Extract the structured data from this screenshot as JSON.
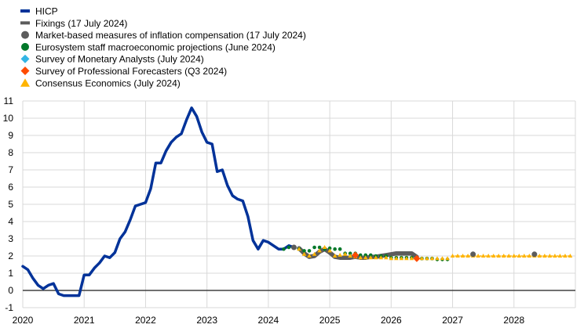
{
  "chart_data": {
    "type": "line",
    "title": "",
    "xlabel": "",
    "ylabel": "",
    "xlim": [
      2020,
      2029
    ],
    "ylim": [
      -1,
      11
    ],
    "grid": true,
    "legend_placement": "top-left",
    "x_ticks": [
      "2020",
      "2021",
      "2022",
      "2023",
      "2024",
      "2025",
      "2026",
      "2027",
      "2028"
    ],
    "y_ticks": [
      "-1",
      "0",
      "1",
      "2",
      "3",
      "4",
      "5",
      "6",
      "7",
      "8",
      "9",
      "10",
      "11"
    ],
    "colors": {
      "hicp": "#003299",
      "fixings": "#5c5c5c",
      "market": "#5c5c5c",
      "eurosystem": "#00782a",
      "sma": "#33b5e5",
      "spf": "#ff4b00",
      "consensus": "#ffb400",
      "grid": "#d9d9d9",
      "zero_line": "#404040"
    },
    "legend": [
      {
        "key": "hicp",
        "label": "HICP",
        "marker": "line"
      },
      {
        "key": "fixings",
        "label": "Fixings (17 July 2024)",
        "marker": "line"
      },
      {
        "key": "market",
        "label": "Market-based measures of inflation compensation (17 July 2024)",
        "marker": "circle"
      },
      {
        "key": "eurosystem",
        "label": "Eurosystem staff macroeconomic projections (June 2024)",
        "marker": "circle"
      },
      {
        "key": "sma",
        "label": "Survey of Monetary Analysts (July 2024)",
        "marker": "diamond"
      },
      {
        "key": "spf",
        "label": "Survey of Professional Forecasters (Q3 2024)",
        "marker": "diamond"
      },
      {
        "key": "consensus",
        "label": "Consensus Economics (July 2024)",
        "marker": "triangle"
      }
    ],
    "series": {
      "hicp": [
        [
          "2020-01",
          1.4
        ],
        [
          "2020-02",
          1.2
        ],
        [
          "2020-03",
          0.7
        ],
        [
          "2020-04",
          0.3
        ],
        [
          "2020-05",
          0.1
        ],
        [
          "2020-06",
          0.3
        ],
        [
          "2020-07",
          0.4
        ],
        [
          "2020-08",
          -0.2
        ],
        [
          "2020-09",
          -0.3
        ],
        [
          "2020-10",
          -0.3
        ],
        [
          "2020-11",
          -0.3
        ],
        [
          "2020-12",
          -0.3
        ],
        [
          "2021-01",
          0.9
        ],
        [
          "2021-02",
          0.9
        ],
        [
          "2021-03",
          1.3
        ],
        [
          "2021-04",
          1.6
        ],
        [
          "2021-05",
          2.0
        ],
        [
          "2021-06",
          1.9
        ],
        [
          "2021-07",
          2.2
        ],
        [
          "2021-08",
          3.0
        ],
        [
          "2021-09",
          3.4
        ],
        [
          "2021-10",
          4.1
        ],
        [
          "2021-11",
          4.9
        ],
        [
          "2021-12",
          5.0
        ],
        [
          "2022-01",
          5.1
        ],
        [
          "2022-02",
          5.9
        ],
        [
          "2022-03",
          7.4
        ],
        [
          "2022-04",
          7.4
        ],
        [
          "2022-05",
          8.1
        ],
        [
          "2022-06",
          8.6
        ],
        [
          "2022-07",
          8.9
        ],
        [
          "2022-08",
          9.1
        ],
        [
          "2022-09",
          9.9
        ],
        [
          "2022-10",
          10.6
        ],
        [
          "2022-11",
          10.1
        ],
        [
          "2022-12",
          9.2
        ],
        [
          "2023-01",
          8.6
        ],
        [
          "2023-02",
          8.5
        ],
        [
          "2023-03",
          6.9
        ],
        [
          "2023-04",
          7.0
        ],
        [
          "2023-05",
          6.1
        ],
        [
          "2023-06",
          5.5
        ],
        [
          "2023-07",
          5.3
        ],
        [
          "2023-08",
          5.2
        ],
        [
          "2023-09",
          4.3
        ],
        [
          "2023-10",
          2.9
        ],
        [
          "2023-11",
          2.4
        ],
        [
          "2023-12",
          2.9
        ],
        [
          "2024-01",
          2.8
        ],
        [
          "2024-02",
          2.6
        ],
        [
          "2024-03",
          2.4
        ],
        [
          "2024-04",
          2.4
        ],
        [
          "2024-05",
          2.6
        ],
        [
          "2024-06",
          2.5
        ]
      ],
      "fixings": [
        [
          "2024-07",
          2.45
        ],
        [
          "2024-08",
          2.15
        ],
        [
          "2024-09",
          1.95
        ],
        [
          "2024-10",
          2.0
        ],
        [
          "2024-11",
          2.25
        ],
        [
          "2024-12",
          2.4
        ],
        [
          "2025-01",
          2.2
        ],
        [
          "2025-02",
          1.95
        ],
        [
          "2025-03",
          1.9
        ],
        [
          "2025-04",
          1.9
        ],
        [
          "2025-05",
          1.9
        ],
        [
          "2025-06",
          1.95
        ],
        [
          "2025-07",
          1.9
        ],
        [
          "2025-08",
          1.9
        ],
        [
          "2025-09",
          1.95
        ],
        [
          "2025-10",
          1.95
        ],
        [
          "2025-11",
          2.0
        ],
        [
          "2025-12",
          2.05
        ],
        [
          "2026-01",
          2.1
        ],
        [
          "2026-02",
          2.15
        ],
        [
          "2026-03",
          2.15
        ],
        [
          "2026-04",
          2.15
        ],
        [
          "2026-05",
          2.15
        ],
        [
          "2026-06",
          1.95
        ]
      ],
      "market": [
        [
          "2024-06",
          2.5
        ],
        [
          "2027-05",
          2.1
        ],
        [
          "2028-05",
          2.1
        ]
      ],
      "eurosystem": [
        [
          "2024-04",
          2.4
        ],
        [
          "2024-05",
          2.5
        ],
        [
          "2024-06",
          2.5
        ],
        [
          "2024-07",
          2.4
        ],
        [
          "2024-08",
          2.3
        ],
        [
          "2024-09",
          2.3
        ],
        [
          "2024-10",
          2.5
        ],
        [
          "2024-11",
          2.5
        ],
        [
          "2024-12",
          2.4
        ],
        [
          "2025-01",
          2.45
        ],
        [
          "2025-02",
          2.4
        ],
        [
          "2025-03",
          2.4
        ],
        [
          "2025-04",
          2.15
        ],
        [
          "2025-05",
          2.15
        ],
        [
          "2025-06",
          2.15
        ],
        [
          "2025-07",
          2.05
        ],
        [
          "2025-08",
          2.05
        ],
        [
          "2025-09",
          2.05
        ],
        [
          "2025-10",
          2.0
        ],
        [
          "2025-11",
          2.0
        ],
        [
          "2025-12",
          2.0
        ],
        [
          "2026-01",
          1.9
        ],
        [
          "2026-02",
          1.9
        ],
        [
          "2026-03",
          1.9
        ],
        [
          "2026-04",
          1.9
        ],
        [
          "2026-05",
          1.9
        ],
        [
          "2026-06",
          1.85
        ],
        [
          "2026-07",
          1.85
        ],
        [
          "2026-08",
          1.85
        ],
        [
          "2026-09",
          1.85
        ],
        [
          "2026-10",
          1.8
        ],
        [
          "2026-11",
          1.8
        ],
        [
          "2026-12",
          1.8
        ]
      ],
      "sma": [],
      "spf": [
        [
          "2025-06",
          2.05
        ],
        [
          "2026-06",
          1.85
        ]
      ],
      "consensus": [
        [
          "2024-07",
          2.4
        ],
        [
          "2024-08",
          2.1
        ],
        [
          "2024-09",
          2.0
        ],
        [
          "2024-10",
          2.1
        ],
        [
          "2024-11",
          2.3
        ],
        [
          "2024-12",
          2.5
        ],
        [
          "2025-01",
          2.3
        ],
        [
          "2025-02",
          2.0
        ],
        [
          "2025-03",
          2.05
        ],
        [
          "2025-04",
          2.1
        ],
        [
          "2025-05",
          2.0
        ],
        [
          "2025-06",
          1.95
        ],
        [
          "2025-07",
          1.9
        ],
        [
          "2025-08",
          1.9
        ],
        [
          "2025-09",
          1.9
        ],
        [
          "2025-10",
          1.9
        ],
        [
          "2025-11",
          1.9
        ],
        [
          "2025-12",
          1.9
        ],
        [
          "2026-01",
          1.85
        ],
        [
          "2026-02",
          1.85
        ],
        [
          "2026-03",
          1.85
        ],
        [
          "2026-04",
          1.85
        ],
        [
          "2026-05",
          1.85
        ],
        [
          "2026-06",
          1.85
        ],
        [
          "2026-07",
          1.85
        ],
        [
          "2026-08",
          1.85
        ],
        [
          "2026-09",
          1.85
        ],
        [
          "2026-10",
          1.85
        ],
        [
          "2026-11",
          1.85
        ],
        [
          "2026-12",
          1.85
        ],
        [
          "2027-01",
          2.0
        ],
        [
          "2027-02",
          2.0
        ],
        [
          "2027-03",
          2.0
        ],
        [
          "2027-04",
          2.0
        ],
        [
          "2027-05",
          2.0
        ],
        [
          "2027-06",
          2.0
        ],
        [
          "2027-07",
          2.0
        ],
        [
          "2027-08",
          2.0
        ],
        [
          "2027-09",
          2.0
        ],
        [
          "2027-10",
          2.0
        ],
        [
          "2027-11",
          2.0
        ],
        [
          "2027-12",
          2.0
        ],
        [
          "2028-01",
          2.0
        ],
        [
          "2028-02",
          2.0
        ],
        [
          "2028-03",
          2.0
        ],
        [
          "2028-04",
          2.0
        ],
        [
          "2028-05",
          2.0
        ],
        [
          "2028-06",
          2.0
        ],
        [
          "2028-07",
          2.0
        ],
        [
          "2028-08",
          2.0
        ],
        [
          "2028-09",
          2.0
        ],
        [
          "2028-10",
          2.0
        ],
        [
          "2028-11",
          2.0
        ],
        [
          "2028-12",
          2.0
        ]
      ]
    }
  }
}
